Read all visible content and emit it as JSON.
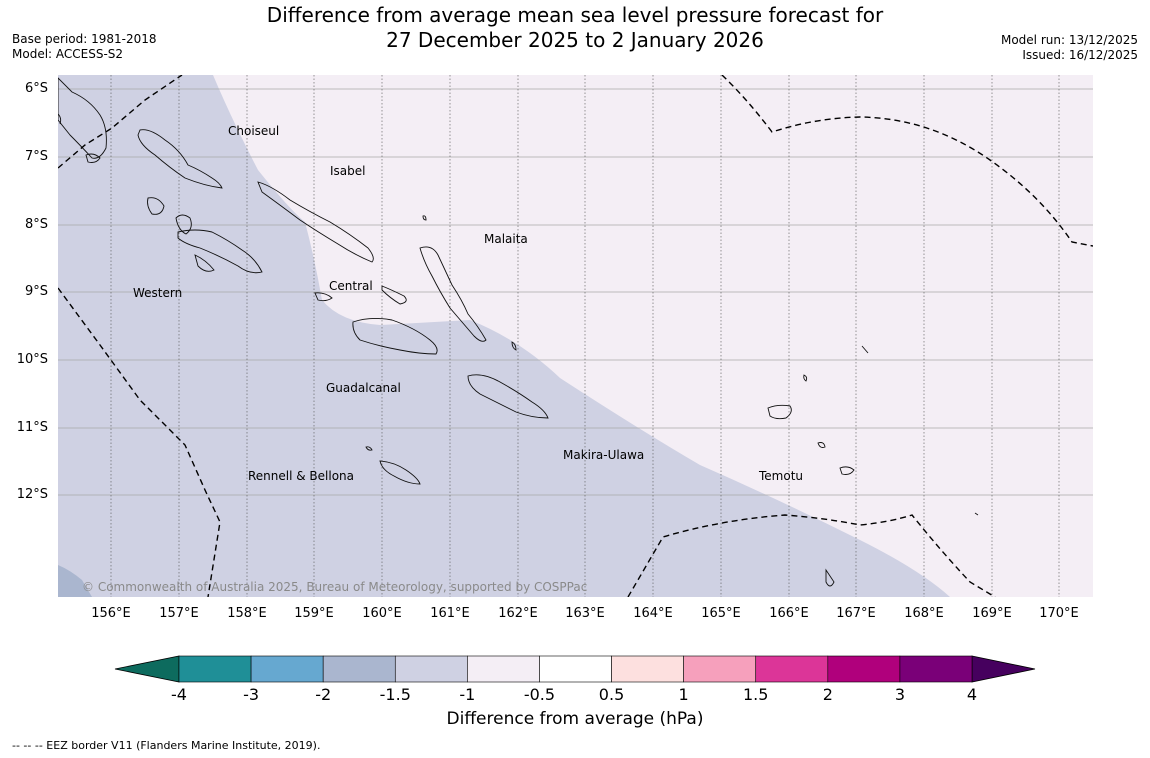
{
  "header": {
    "title_line1": "Difference from average mean sea level pressure forecast for",
    "title_line2": "27 December 2025 to 2 January 2026",
    "base_period": "Base period: 1981-2018",
    "model": "Model: ACCESS-S2",
    "model_run": "Model run: 13/12/2025",
    "issued": "Issued: 16/12/2025"
  },
  "map": {
    "lat_ticks": [
      "6°S",
      "7°S",
      "8°S",
      "9°S",
      "10°S",
      "11°S",
      "12°S"
    ],
    "lon_ticks": [
      "156°E",
      "157°E",
      "158°E",
      "159°E",
      "160°E",
      "161°E",
      "162°E",
      "163°E",
      "164°E",
      "165°E",
      "166°E",
      "167°E",
      "168°E",
      "169°E",
      "170°E"
    ],
    "province_labels": [
      "Choiseul",
      "Isabel",
      "Malaita",
      "Western",
      "Central",
      "Guadalcanal",
      "Makira-Ulawa",
      "Rennell & Bellona",
      "Temotu"
    ],
    "copyright": "© Commonwealth of Australia 2025, Bureau of Meteorology, supported by COSPPac",
    "field_colors": {
      "band_minus_1.5_to_minus_1": "#cfd1e3",
      "band_minus_1_to_minus_0.5": "#f4eef5",
      "band_minus_2_to_minus_1.5": "#aab6cf"
    }
  },
  "colorbar": {
    "label": "Difference from average (hPa)",
    "ticks": [
      "-4",
      "-3",
      "-2",
      "-1.5",
      "-1",
      "-0.5",
      "0.5",
      "1",
      "1.5",
      "2",
      "3",
      "4"
    ],
    "extend_low_color": "#0d6b5e",
    "extend_high_color": "#46005e",
    "colors": [
      "#1f8f97",
      "#66a8d0",
      "#aab6cf",
      "#cfd1e3",
      "#f4eef5",
      "#ffffff",
      "#fde0df",
      "#f6a0bc",
      "#dc3598",
      "#b0007c",
      "#7a0078"
    ]
  },
  "footer": {
    "eez_note": "--  --  -- EEZ border V11 (Flanders Marine Institute, 2019)."
  }
}
